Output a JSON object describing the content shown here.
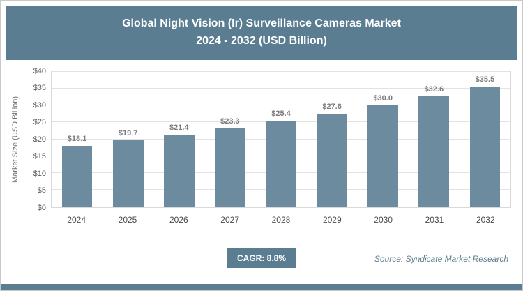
{
  "header": {
    "title_line1": "Global Night Vision (Ir) Surveillance Cameras Market",
    "title_line2": "2024 - 2032 (USD Billion)"
  },
  "chart_data": {
    "type": "bar",
    "title": "Global Night Vision (Ir) Surveillance Cameras Market 2024 - 2032 (USD Billion)",
    "categories": [
      "2024",
      "2025",
      "2026",
      "2027",
      "2028",
      "2029",
      "2030",
      "2031",
      "2032"
    ],
    "values": [
      18.1,
      19.7,
      21.4,
      23.3,
      25.4,
      27.6,
      30.0,
      32.6,
      35.5
    ],
    "value_labels": [
      "$18.1",
      "$19.7",
      "$21.4",
      "$23.3",
      "$25.4",
      "$27.6",
      "$30.0",
      "$32.6",
      "$35.5"
    ],
    "xlabel": "",
    "ylabel": "Market Size (USD Billion)",
    "ylim": [
      0,
      40
    ],
    "yticks": [
      0,
      5,
      10,
      15,
      20,
      25,
      30,
      35,
      40
    ],
    "ytick_labels": [
      "$0",
      "$5",
      "$10",
      "$15",
      "$20",
      "$25",
      "$30",
      "$35",
      "$40"
    ],
    "grid": true,
    "legend_position": "none"
  },
  "footer": {
    "cagr_label": "CAGR: 8.8%",
    "source": "Source: Syndicate Market Research"
  },
  "colors": {
    "accent": "#5a7d92",
    "bar": "#6d8b9e",
    "value_label": "#7c7c7c",
    "gridline": "#e2e2e2"
  }
}
